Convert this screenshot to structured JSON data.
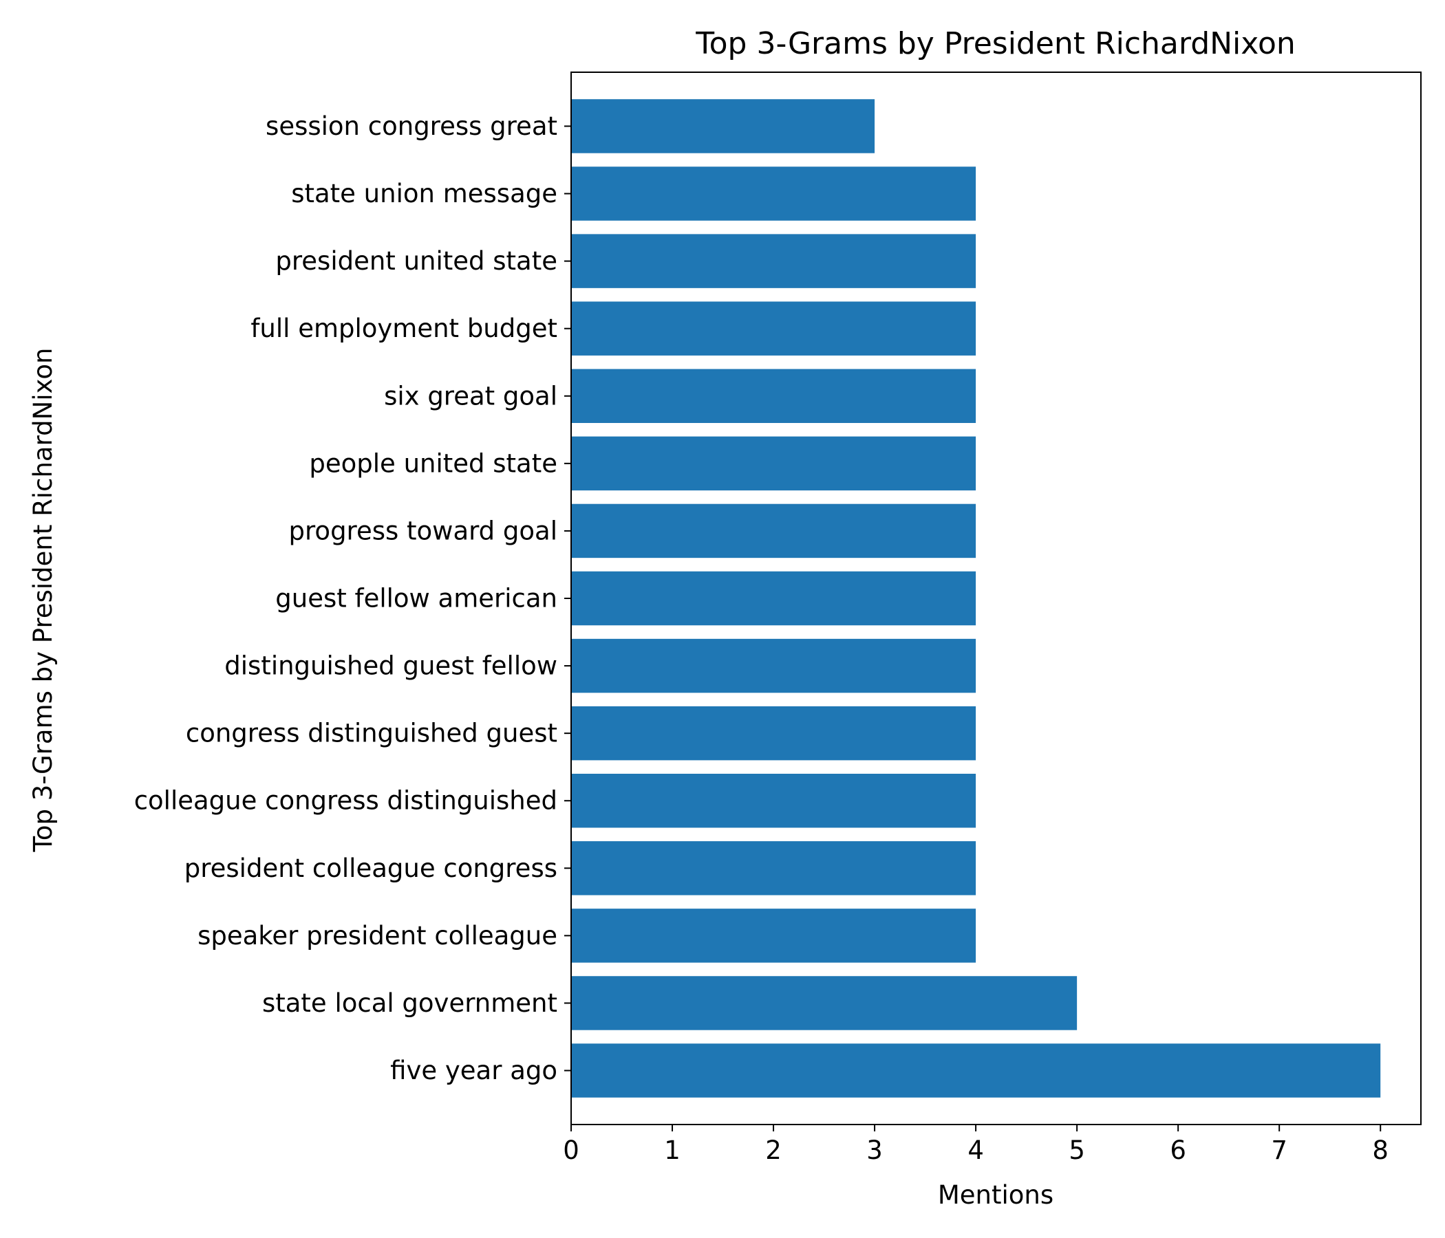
{
  "chart_data": {
    "type": "bar",
    "orientation": "horizontal",
    "title": "Top 3-Grams by President RichardNixon",
    "xlabel": "Mentions",
    "ylabel": "Top 3-Grams by President RichardNixon",
    "categories": [
      "five year ago",
      "state local government",
      "speaker president colleague",
      "president colleague congress",
      "colleague congress distinguished",
      "congress distinguished guest",
      "distinguished guest fellow",
      "guest fellow american",
      "progress toward goal",
      "people united state",
      "six great goal",
      "full employment budget",
      "president united state",
      "state union message",
      "session congress great"
    ],
    "values": [
      8,
      5,
      4,
      4,
      4,
      4,
      4,
      4,
      4,
      4,
      4,
      4,
      4,
      4,
      3
    ],
    "xlim": [
      0,
      8.4
    ],
    "xticks": [
      0,
      1,
      2,
      3,
      4,
      5,
      6,
      7,
      8
    ],
    "bar_color": "#1f77b4",
    "grid": false,
    "legend": "none"
  }
}
